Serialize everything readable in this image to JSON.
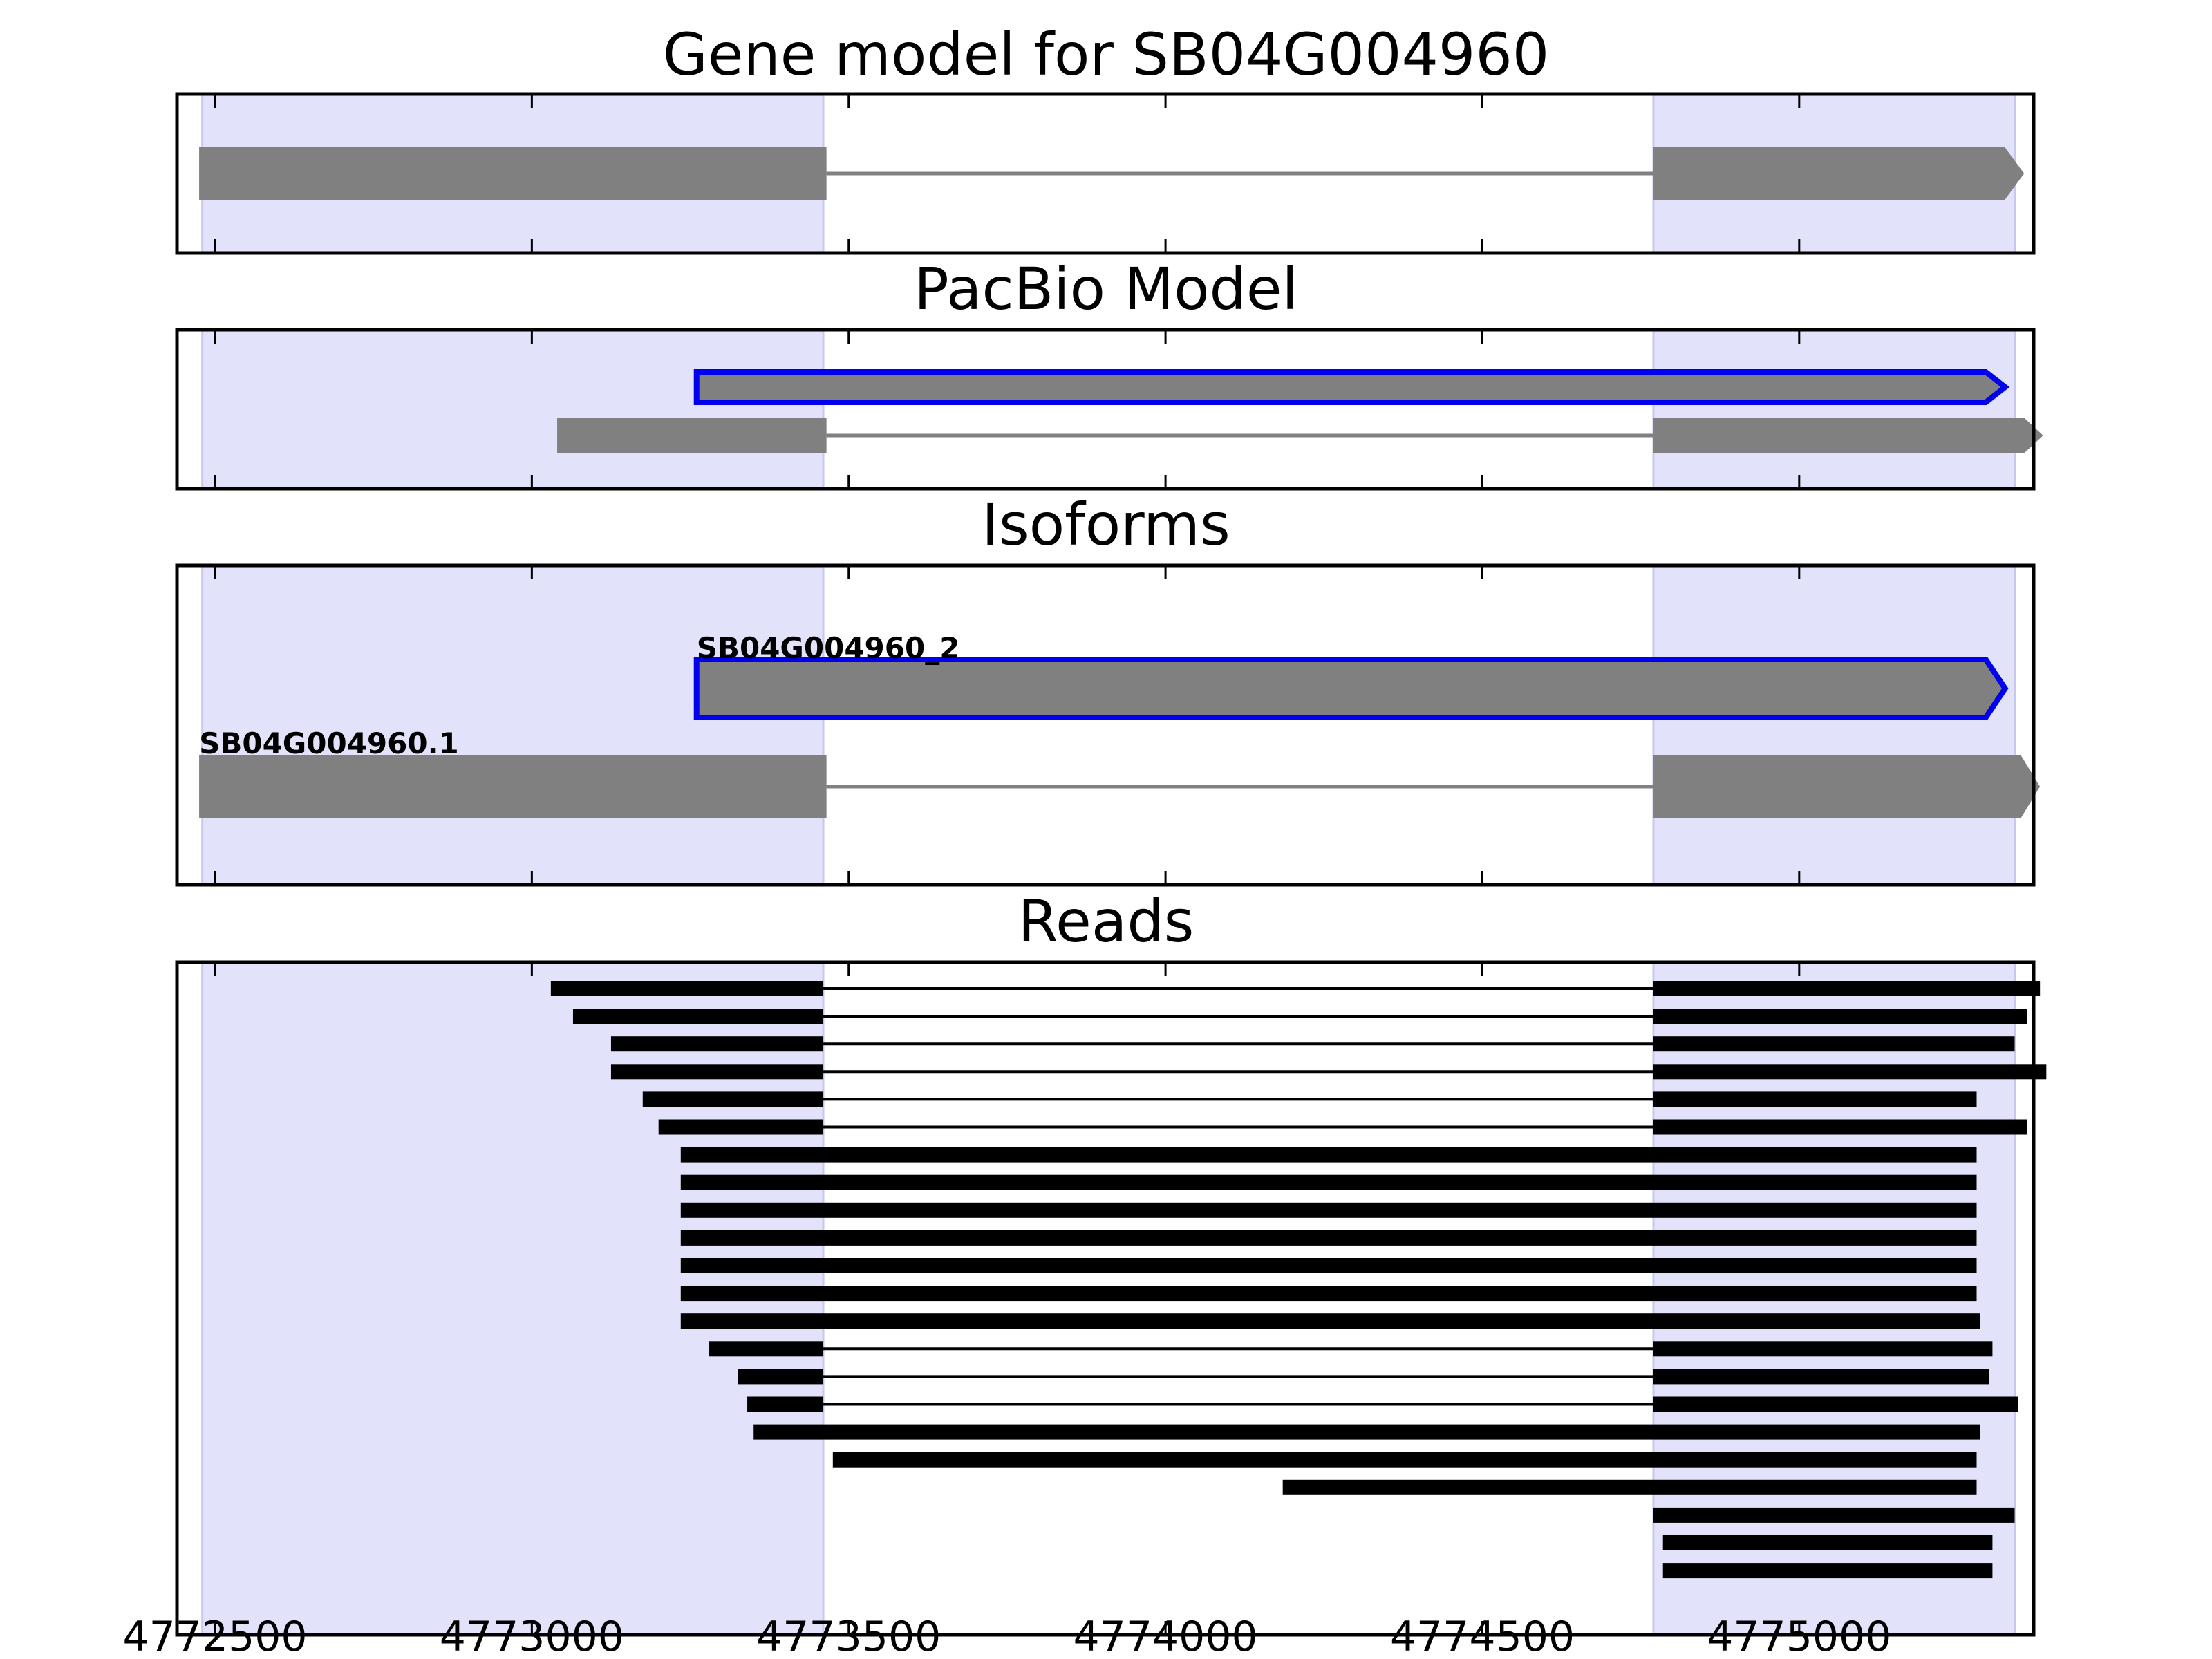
{
  "figure": {
    "panels": [
      {
        "id": "gene",
        "title": "Gene model for SB04G004960"
      },
      {
        "id": "pacbio",
        "title": "PacBio Model"
      },
      {
        "id": "iso",
        "title": "Isoforms"
      },
      {
        "id": "reads",
        "title": "Reads"
      }
    ],
    "x_ticks": [
      4772500,
      4773000,
      4773500,
      4774000,
      4774500,
      4775000
    ],
    "x_tick_labels": [
      "4772500",
      "4773000",
      "4773500",
      "4774000",
      "4774500",
      "4775000"
    ]
  },
  "chart_data": {
    "type": "gene-track",
    "xlim": [
      4772440,
      4775370
    ],
    "exon_highlights": [
      [
        4772480,
        4773460
      ],
      [
        4774770,
        4775340
      ]
    ],
    "colors": {
      "exon": "#808080",
      "intron": "#808080",
      "highlight": "#e2e2fb",
      "highlight_edge": "#c8c8ee",
      "selected_outline": "#0000ee",
      "read": "#000000"
    },
    "gene_model": [
      {
        "exons": [
          [
            4772475,
            4773465
          ],
          [
            4774770,
            4775355
          ]
        ],
        "strand": "+"
      }
    ],
    "pacbio_model": [
      {
        "exons": [
          [
            4773260,
            4775325
          ]
        ],
        "strand": "+",
        "selected": true
      },
      {
        "exons": [
          [
            4773040,
            4773465
          ],
          [
            4774770,
            4775385
          ]
        ],
        "strand": "+"
      }
    ],
    "isoforms": [
      {
        "name": "SB04G004960_2",
        "exons": [
          [
            4773260,
            4775325
          ]
        ],
        "strand": "+",
        "selected": true
      },
      {
        "name": "SB04G004960.1",
        "exons": [
          [
            4772475,
            4773465
          ],
          [
            4774770,
            4775380
          ]
        ],
        "strand": "+"
      }
    ],
    "reads": [
      {
        "blocks": [
          [
            4773030,
            4773460
          ],
          [
            4774770,
            4775380
          ]
        ]
      },
      {
        "blocks": [
          [
            4773065,
            4773460
          ],
          [
            4774770,
            4775360
          ]
        ]
      },
      {
        "blocks": [
          [
            4773125,
            4773460
          ],
          [
            4774770,
            4775340
          ]
        ]
      },
      {
        "blocks": [
          [
            4773125,
            4773460
          ],
          [
            4774770,
            4775390
          ]
        ]
      },
      {
        "blocks": [
          [
            4773175,
            4773460
          ],
          [
            4774770,
            4775280
          ]
        ]
      },
      {
        "blocks": [
          [
            4773200,
            4773460
          ],
          [
            4774770,
            4775360
          ]
        ]
      },
      {
        "blocks": [
          [
            4773235,
            4775280
          ]
        ]
      },
      {
        "blocks": [
          [
            4773235,
            4775280
          ]
        ]
      },
      {
        "blocks": [
          [
            4773235,
            4775280
          ]
        ]
      },
      {
        "blocks": [
          [
            4773235,
            4775280
          ]
        ]
      },
      {
        "blocks": [
          [
            4773235,
            4775280
          ]
        ]
      },
      {
        "blocks": [
          [
            4773235,
            4775280
          ]
        ]
      },
      {
        "blocks": [
          [
            4773235,
            4775285
          ]
        ]
      },
      {
        "blocks": [
          [
            4773280,
            4773460
          ],
          [
            4774770,
            4775305
          ]
        ]
      },
      {
        "blocks": [
          [
            4773325,
            4773460
          ],
          [
            4774770,
            4775300
          ]
        ]
      },
      {
        "blocks": [
          [
            4773340,
            4773460
          ],
          [
            4774770,
            4775345
          ]
        ]
      },
      {
        "blocks": [
          [
            4773350,
            4775285
          ]
        ]
      },
      {
        "blocks": [
          [
            4773475,
            4775280
          ]
        ]
      },
      {
        "blocks": [
          [
            4774185,
            4775280
          ]
        ]
      },
      {
        "blocks": [
          [
            4774770,
            4775340
          ]
        ]
      },
      {
        "blocks": [
          [
            4774785,
            4775305
          ]
        ]
      },
      {
        "blocks": [
          [
            4774785,
            4775305
          ]
        ]
      }
    ]
  }
}
